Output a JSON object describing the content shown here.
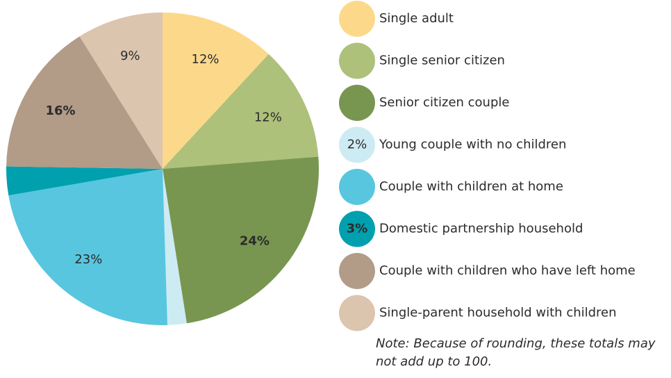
{
  "chart_data": {
    "type": "pie",
    "categories": [
      "Single adult",
      "Single senior citizen",
      "Senior citizen couple",
      "Young couple with no children",
      "Couple with children at home",
      "Domestic partnership household",
      "Couple with children who have left home",
      "Single-parent household with children"
    ],
    "values": [
      12,
      12,
      24,
      2,
      23,
      3,
      16,
      9
    ],
    "value_labels": [
      "12%",
      "12%",
      "24%",
      "2%",
      "23%",
      "3%",
      "16%",
      "9%"
    ],
    "colors": [
      "#fcd98a",
      "#adc17a",
      "#789650",
      "#cdebf3",
      "#58c6df",
      "#00a0ae",
      "#b29b87",
      "#dbc5af"
    ],
    "label_colors": [
      "#2b2b2b",
      "#2b2b2b",
      "#ffffff",
      "#2b2b2b",
      "#2b2b2b",
      "#ffffff",
      "#ffffff",
      "#2b2b2b"
    ],
    "note": "Note: Because of rounding, these totals may not add up to 100."
  }
}
